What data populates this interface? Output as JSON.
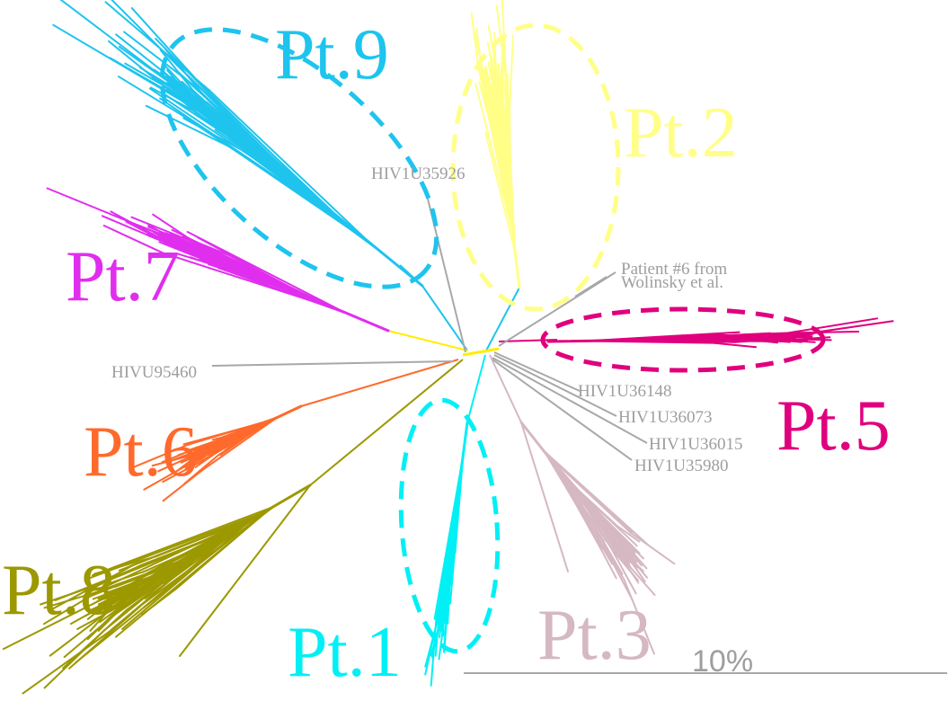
{
  "colors": {
    "pt1": "#00f0f5",
    "pt2": "#ffff88",
    "pt3": "#d5b8c2",
    "pt5": "#e0007e",
    "pt6": "#ff6a2c",
    "pt7": "#e02eee",
    "pt8": "#9c9800",
    "pt9": "#1ec4ee",
    "reference": "#a8a8a8",
    "backbone": "#ffee00"
  },
  "clusters": [
    {
      "label": "Pt.9",
      "color": "#1ec4ee",
      "circled": true
    },
    {
      "label": "Pt.2",
      "color": "#ffff88",
      "circled": true
    },
    {
      "label": "Pt.7",
      "color": "#e02eee",
      "circled": false
    },
    {
      "label": "Pt.5",
      "color": "#e0007e",
      "circled": true
    },
    {
      "label": "Pt.6",
      "color": "#ff6a2c",
      "circled": false
    },
    {
      "label": "Pt.8",
      "color": "#9c9800",
      "circled": false
    },
    {
      "label": "Pt.1",
      "color": "#00f0f5",
      "circled": true
    },
    {
      "label": "Pt.3",
      "color": "#d5b8c2",
      "circled": false
    }
  ],
  "references": {
    "u35926": "HIV1U35926",
    "patient6_line1": "Patient #6 from",
    "patient6_line2": "Wolinsky et al.",
    "u95460": "HIVU95460",
    "u36148": "HIV1U36148",
    "u36073": "HIV1U36073",
    "u36015": "HIV1U36015",
    "u35980": "HIV1U35980"
  },
  "scale_bar": {
    "label": "10%"
  }
}
